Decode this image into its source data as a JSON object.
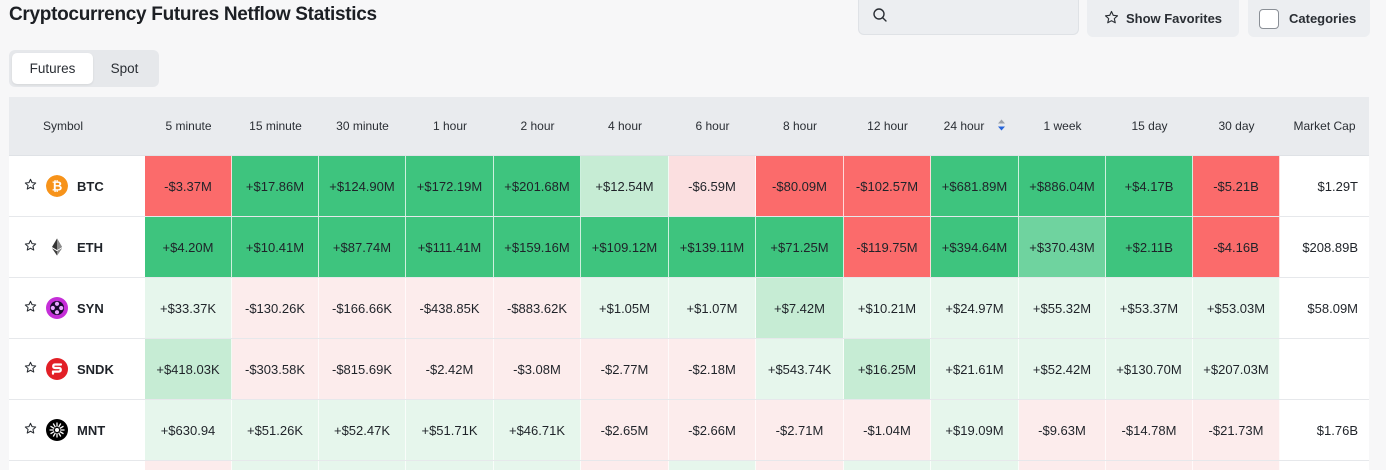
{
  "page_title": "Cryptocurrency Futures Netflow Statistics",
  "search": {
    "placeholder": ""
  },
  "buttons": {
    "favorites_label": "Show Favorites",
    "categories_label": "Categories"
  },
  "tabs": [
    {
      "label": "Futures",
      "active": true
    },
    {
      "label": "Spot",
      "active": false
    }
  ],
  "table": {
    "headers": [
      "Symbol",
      "5 minute",
      "15 minute",
      "30 minute",
      "1 hour",
      "2 hour",
      "4 hour",
      "6 hour",
      "8 hour",
      "12 hour",
      "24 hour",
      "1 week",
      "15 day",
      "30 day",
      "Market Cap"
    ],
    "sorted_column": "24 hour",
    "rows": [
      {
        "symbol": "BTC",
        "icon": "bitcoin-icon",
        "values": [
          "-$3.37M",
          "+$17.86M",
          "+$124.90M",
          "+$172.19M",
          "+$201.68M",
          "+$12.54M",
          "-$6.59M",
          "-$80.09M",
          "-$102.57M",
          "+$681.89M",
          "+$886.04M",
          "+$4.17B",
          "-$5.21B"
        ],
        "shades": [
          "r3",
          "g3",
          "g3",
          "g3",
          "g3",
          "g1",
          "r1",
          "r3",
          "r3",
          "g3",
          "g3",
          "g3",
          "r3"
        ],
        "market_cap": "$1.29T"
      },
      {
        "symbol": "ETH",
        "icon": "ethereum-icon",
        "values": [
          "+$4.20M",
          "+$10.41M",
          "+$87.74M",
          "+$111.41M",
          "+$159.16M",
          "+$109.12M",
          "+$139.11M",
          "+$71.25M",
          "-$119.75M",
          "+$394.64M",
          "+$370.43M",
          "+$2.11B",
          "-$4.16B"
        ],
        "shades": [
          "g3",
          "g3",
          "g3",
          "g3",
          "g3",
          "g3",
          "g3",
          "g3",
          "r3",
          "g3",
          "g2",
          "g3",
          "r3"
        ],
        "market_cap": "$208.89B"
      },
      {
        "symbol": "SYN",
        "icon": "synapse-icon",
        "values": [
          "+$33.37K",
          "-$130.26K",
          "-$166.66K",
          "-$438.85K",
          "-$883.62K",
          "+$1.05M",
          "+$1.07M",
          "+$7.42M",
          "+$10.21M",
          "+$24.97M",
          "+$55.32M",
          "+$53.37M",
          "+$53.03M"
        ],
        "shades": [
          "g0",
          "r0",
          "r0",
          "r0",
          "r0",
          "g0",
          "g0",
          "g1",
          "g0",
          "g0",
          "g0",
          "g0",
          "g0"
        ],
        "market_cap": "$58.09M"
      },
      {
        "symbol": "SNDK",
        "icon": "sandisk-icon",
        "values": [
          "+$418.03K",
          "-$303.58K",
          "-$815.69K",
          "-$2.42M",
          "-$3.08M",
          "-$2.77M",
          "-$2.18M",
          "+$543.74K",
          "+$16.25M",
          "+$21.61M",
          "+$52.42M",
          "+$130.70M",
          "+$207.03M"
        ],
        "shades": [
          "g1",
          "r0",
          "r0",
          "r0",
          "r0",
          "r0",
          "r0",
          "g0",
          "g1",
          "g0",
          "g0",
          "g0",
          "g0"
        ],
        "market_cap": ""
      },
      {
        "symbol": "MNT",
        "icon": "mantle-icon",
        "values": [
          "+$630.94",
          "+$51.26K",
          "+$52.47K",
          "+$51.71K",
          "+$46.71K",
          "-$2.65M",
          "-$2.66M",
          "-$2.71M",
          "-$1.04M",
          "+$19.09M",
          "-$9.63M",
          "-$14.78M",
          "-$21.73M"
        ],
        "shades": [
          "g0",
          "g0",
          "g0",
          "g0",
          "g0",
          "r0",
          "r0",
          "r0",
          "r0",
          "g0",
          "r0",
          "r0",
          "r0"
        ],
        "market_cap": "$1.76B"
      }
    ],
    "partial_row_shades": [
      "r0",
      "g0",
      "g0",
      "g0",
      "g0",
      "r0",
      "g0",
      "r0",
      "g0",
      "g0",
      "r0",
      "r0",
      "r0"
    ]
  },
  "colors": {
    "g3": "#3ec47e",
    "g2": "#6fd39f",
    "g1": "#c6ecd4",
    "g0": "#e6f6ec",
    "r3": "#fb6b6b",
    "r1": "#fbdfe0",
    "r0": "#fcecec",
    "sort_up": "#9aa0a8",
    "sort_down": "#2563d9"
  }
}
